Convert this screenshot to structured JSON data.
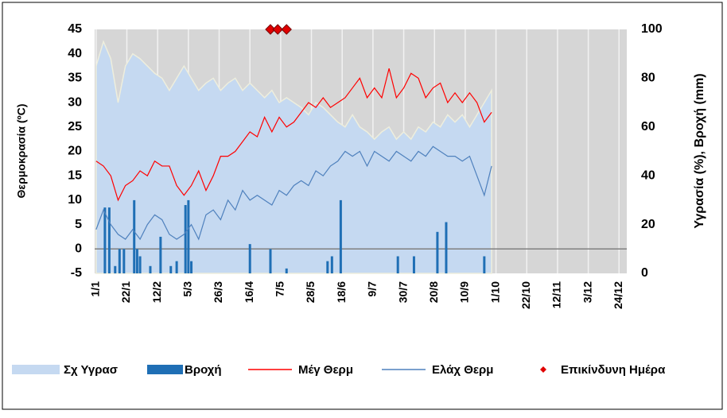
{
  "chart_data": {
    "type": "combo",
    "ylabel": "Θερμοκρασία (ºC)",
    "y2label": "Υγρασία (%), Βροχή (mm)",
    "xlim": [
      0,
      366
    ],
    "xticks": [
      {
        "value": 1,
        "label": "1/1"
      },
      {
        "value": 22,
        "label": "22/1"
      },
      {
        "value": 43,
        "label": "12/2"
      },
      {
        "value": 64,
        "label": "5/3"
      },
      {
        "value": 85,
        "label": "26/3"
      },
      {
        "value": 106,
        "label": "16/4"
      },
      {
        "value": 127,
        "label": "7/5"
      },
      {
        "value": 148,
        "label": "28/5"
      },
      {
        "value": 169,
        "label": "18/6"
      },
      {
        "value": 190,
        "label": "9/7"
      },
      {
        "value": 211,
        "label": "30/7"
      },
      {
        "value": 232,
        "label": "20/8"
      },
      {
        "value": 253,
        "label": "10/9"
      },
      {
        "value": 274,
        "label": "1/10"
      },
      {
        "value": 295,
        "label": "22/10"
      },
      {
        "value": 316,
        "label": "12/11"
      },
      {
        "value": 337,
        "label": "3/12"
      },
      {
        "value": 358,
        "label": "24/12"
      }
    ],
    "ylim": [
      -5,
      45
    ],
    "yticks": [
      -5,
      0,
      5,
      10,
      15,
      20,
      25,
      30,
      35,
      40,
      45
    ],
    "y2lim": [
      0,
      100
    ],
    "y2ticks": [
      0,
      20,
      40,
      60,
      80,
      100
    ],
    "x": [
      1,
      6,
      11,
      16,
      21,
      26,
      31,
      36,
      41,
      46,
      51,
      56,
      61,
      66,
      71,
      76,
      81,
      86,
      91,
      96,
      101,
      106,
      111,
      116,
      121,
      126,
      131,
      136,
      141,
      146,
      151,
      156,
      161,
      166,
      171,
      176,
      181,
      186,
      191,
      196,
      201,
      206,
      211,
      216,
      221,
      226,
      231,
      236,
      241,
      246,
      251,
      256,
      261,
      266,
      271
    ],
    "series": [
      {
        "name": "Σχ Υγρασ",
        "kind": "area",
        "axis": "y2",
        "color": "#c5d9f1",
        "values": [
          85,
          95,
          88,
          70,
          85,
          90,
          88,
          85,
          82,
          80,
          75,
          80,
          85,
          80,
          75,
          78,
          80,
          75,
          78,
          80,
          75,
          78,
          75,
          72,
          75,
          70,
          72,
          70,
          68,
          65,
          70,
          68,
          65,
          62,
          60,
          65,
          60,
          58,
          55,
          58,
          60,
          55,
          58,
          55,
          60,
          58,
          62,
          60,
          65,
          62,
          65,
          60,
          65,
          70,
          75
        ]
      },
      {
        "name": "Βροχή",
        "kind": "bar",
        "axis": "y2",
        "color": "#1f6fb5",
        "x": [
          7,
          10,
          14,
          17,
          20,
          27,
          29,
          31,
          38,
          45,
          52,
          56,
          62,
          64,
          66,
          106,
          120,
          131,
          159,
          162,
          168,
          207,
          218,
          234,
          240,
          266
        ],
        "values": [
          27,
          27,
          3,
          10,
          10,
          30,
          10,
          7,
          3,
          15,
          3,
          5,
          28,
          30,
          5,
          12,
          10,
          2,
          5,
          7,
          30,
          7,
          7,
          17,
          21,
          7
        ]
      },
      {
        "name": "Μέγ Θερμ",
        "kind": "line",
        "color": "#ff0000",
        "values": [
          18,
          17,
          15,
          10,
          13,
          14,
          16,
          15,
          18,
          17,
          17,
          13,
          11,
          13,
          16,
          12,
          15,
          19,
          19,
          20,
          22,
          24,
          23,
          27,
          24,
          27,
          25,
          26,
          28,
          30,
          29,
          31,
          29,
          30,
          31,
          33,
          35,
          31,
          33,
          31,
          37,
          31,
          33,
          36,
          35,
          31,
          33,
          34,
          30,
          32,
          30,
          32,
          30,
          26,
          28
        ]
      },
      {
        "name": "Ελάχ Θερμ",
        "kind": "line",
        "color": "#4f81bd",
        "values": [
          4,
          8,
          5,
          3,
          2,
          4,
          2,
          5,
          7,
          6,
          3,
          2,
          3,
          5,
          2,
          7,
          8,
          6,
          10,
          8,
          12,
          10,
          11,
          10,
          9,
          12,
          11,
          13,
          14,
          13,
          16,
          15,
          17,
          18,
          20,
          19,
          20,
          17,
          20,
          19,
          18,
          20,
          19,
          18,
          20,
          19,
          21,
          20,
          19,
          19,
          18,
          19,
          15,
          11,
          17
        ]
      },
      {
        "name": "Επικίνδυνη Ημέρα",
        "kind": "scatter",
        "color": "#e00000",
        "x": [
          120,
          125,
          131
        ],
        "values": [
          45,
          45,
          45
        ]
      }
    ]
  }
}
